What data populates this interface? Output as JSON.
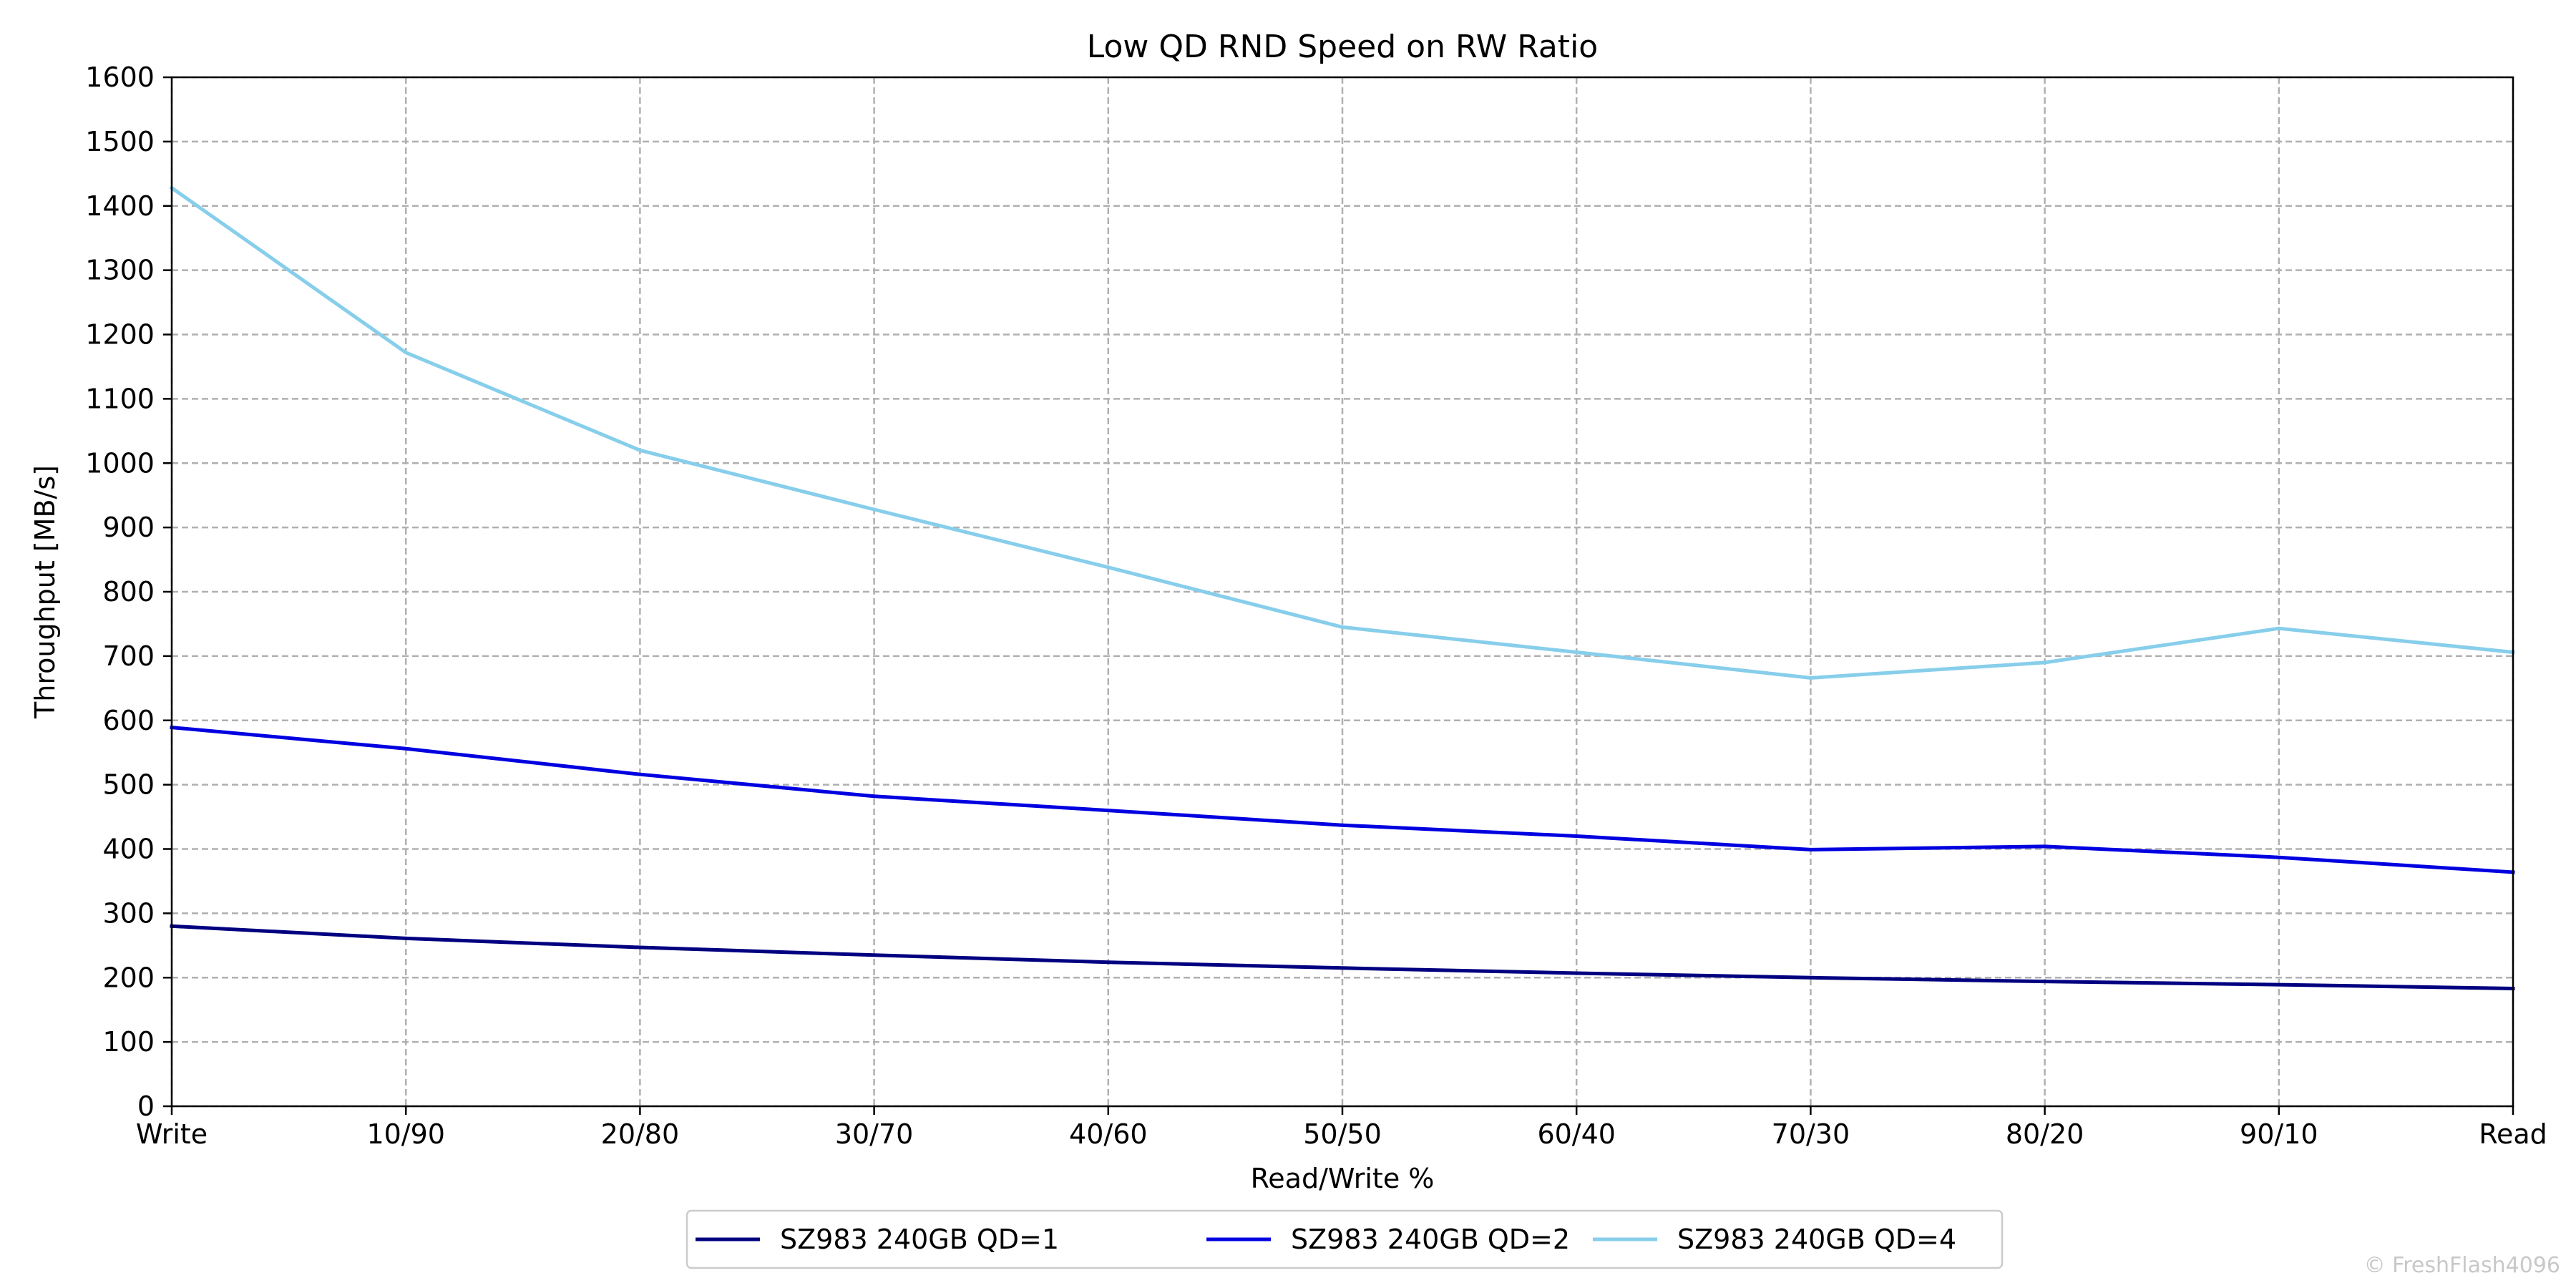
{
  "chart_data": {
    "type": "line",
    "title": "Low QD RND Speed on RW Ratio",
    "xlabel": "Read/Write %",
    "ylabel": "Throughput [MB/s]",
    "categories": [
      "Write",
      "10/90",
      "20/80",
      "30/70",
      "40/60",
      "50/50",
      "60/40",
      "70/30",
      "80/20",
      "90/10",
      "Read"
    ],
    "ylim": [
      0,
      1600
    ],
    "yticks": [
      0,
      100,
      200,
      300,
      400,
      500,
      600,
      700,
      800,
      900,
      1000,
      1100,
      1200,
      1300,
      1400,
      1500,
      1600
    ],
    "grid": true,
    "legend_position": "bottom-center",
    "series": [
      {
        "name": "SZ983 240GB QD=1",
        "color": "#000080",
        "values": [
          280,
          261,
          247,
          235,
          224,
          215,
          207,
          200,
          194,
          189,
          183
        ]
      },
      {
        "name": "SZ983 240GB QD=2",
        "color": "#0000e0",
        "values": [
          589,
          556,
          516,
          482,
          460,
          437,
          420,
          399,
          404,
          387,
          364
        ]
      },
      {
        "name": "SZ983 240GB QD=4",
        "color": "#87ceeb",
        "values": [
          1428,
          1172,
          1020,
          928,
          838,
          745,
          706,
          666,
          690,
          743,
          706
        ]
      }
    ]
  },
  "watermark": "© FreshFlash4096"
}
